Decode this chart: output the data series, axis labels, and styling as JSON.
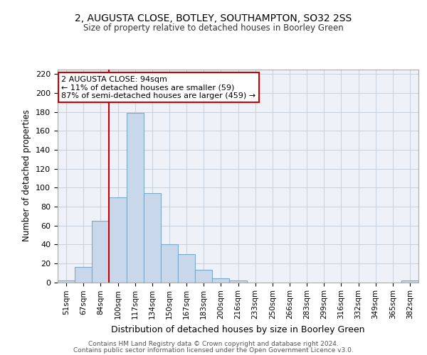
{
  "title1": "2, AUGUSTA CLOSE, BOTLEY, SOUTHAMPTON, SO32 2SS",
  "title2": "Size of property relative to detached houses in Boorley Green",
  "xlabel": "Distribution of detached houses by size in Boorley Green",
  "ylabel": "Number of detached properties",
  "footer1": "Contains HM Land Registry data © Crown copyright and database right 2024.",
  "footer2": "Contains public sector information licensed under the Open Government Licence v3.0.",
  "bins": [
    "51sqm",
    "67sqm",
    "84sqm",
    "100sqm",
    "117sqm",
    "134sqm",
    "150sqm",
    "167sqm",
    "183sqm",
    "200sqm",
    "216sqm",
    "233sqm",
    "250sqm",
    "266sqm",
    "283sqm",
    "299sqm",
    "316sqm",
    "332sqm",
    "349sqm",
    "365sqm",
    "382sqm"
  ],
  "bar_values": [
    2,
    16,
    65,
    90,
    179,
    94,
    40,
    30,
    13,
    4,
    2,
    0,
    0,
    0,
    0,
    0,
    0,
    0,
    0,
    0,
    2
  ],
  "bar_color": "#c8d8ea",
  "bar_edge_color": "#7aaac8",
  "annotation_line1": "2 AUGUSTA CLOSE: 94sqm",
  "annotation_line2": "← 11% of detached houses are smaller (59)",
  "annotation_line3": "87% of semi-detached houses are larger (459) →",
  "ylim": [
    0,
    225
  ],
  "yticks": [
    0,
    20,
    40,
    60,
    80,
    100,
    120,
    140,
    160,
    180,
    200,
    220
  ],
  "bg_color": "#eef2f8",
  "grid_color": "#c8d0dc",
  "red_line_color": "#cc0000",
  "annotation_border_color": "#cc0000"
}
